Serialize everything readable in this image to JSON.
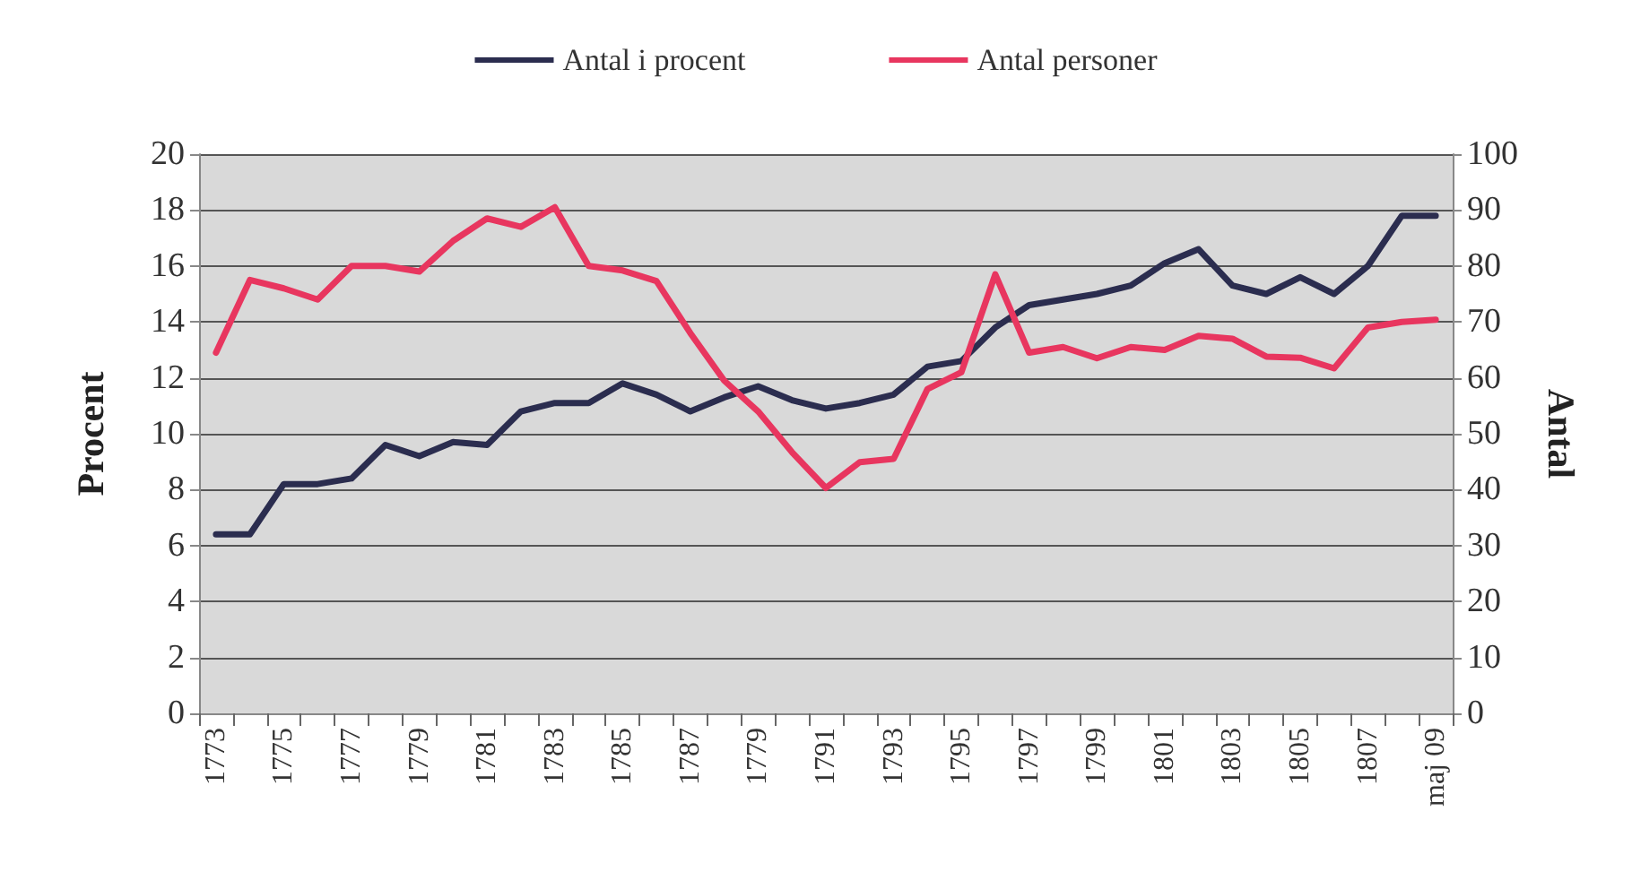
{
  "chart_data": {
    "type": "line",
    "xlabel": null,
    "ylabel": "Procent",
    "y2label": "Antal",
    "categories": [
      "1773",
      null,
      "1775",
      null,
      "1777",
      null,
      "1779",
      null,
      "1781",
      null,
      "1783",
      null,
      "1785",
      null,
      "1787",
      null,
      "1779",
      null,
      "1791",
      null,
      "1793",
      null,
      "1795",
      null,
      "1797",
      null,
      "1799",
      null,
      "1801",
      null,
      "1803",
      null,
      "1805",
      null,
      "1807",
      null,
      "maj 09"
    ],
    "series": [
      {
        "name": "Antal i procent",
        "color": "#2b2d4f",
        "values": [
          6.4,
          6.4,
          8.2,
          8.2,
          8.4,
          9.6,
          9.2,
          9.7,
          9.6,
          10.8,
          11.1,
          11.1,
          11.8,
          11.4,
          10.8,
          11.3,
          11.7,
          11.2,
          10.9,
          11.1,
          11.4,
          12.4,
          12.6,
          13.8,
          14.6,
          14.8,
          15.0,
          15.3,
          16.1,
          16.6,
          15.3,
          15.0,
          15.6,
          15.0,
          16.0,
          17.8,
          17.8
        ]
      },
      {
        "name": "Antal personer",
        "color": "#e8365f",
        "axis": "y2",
        "values": [
          64.5,
          77.5,
          76,
          74,
          80,
          80,
          79,
          84.5,
          88.5,
          87,
          90.5,
          80,
          79.2,
          77.3,
          68,
          59.5,
          54,
          46.7,
          40.3,
          44.9,
          45.5,
          58,
          61,
          78.5,
          64.5,
          65.5,
          63.5,
          65.5,
          65,
          67.5,
          67,
          63.8,
          63.6,
          61.7,
          69,
          70,
          70.4
        ]
      }
    ],
    "ylim": [
      0,
      20
    ],
    "yticks": [
      0,
      2,
      4,
      6,
      8,
      10,
      12,
      14,
      16,
      18,
      20
    ],
    "y2lim": [
      0,
      100
    ],
    "y2ticks": [
      0,
      10,
      20,
      30,
      40,
      50,
      60,
      70,
      80,
      90,
      100
    ],
    "grid": "y",
    "legend": "top",
    "marker": "none",
    "line_style": "solid"
  }
}
